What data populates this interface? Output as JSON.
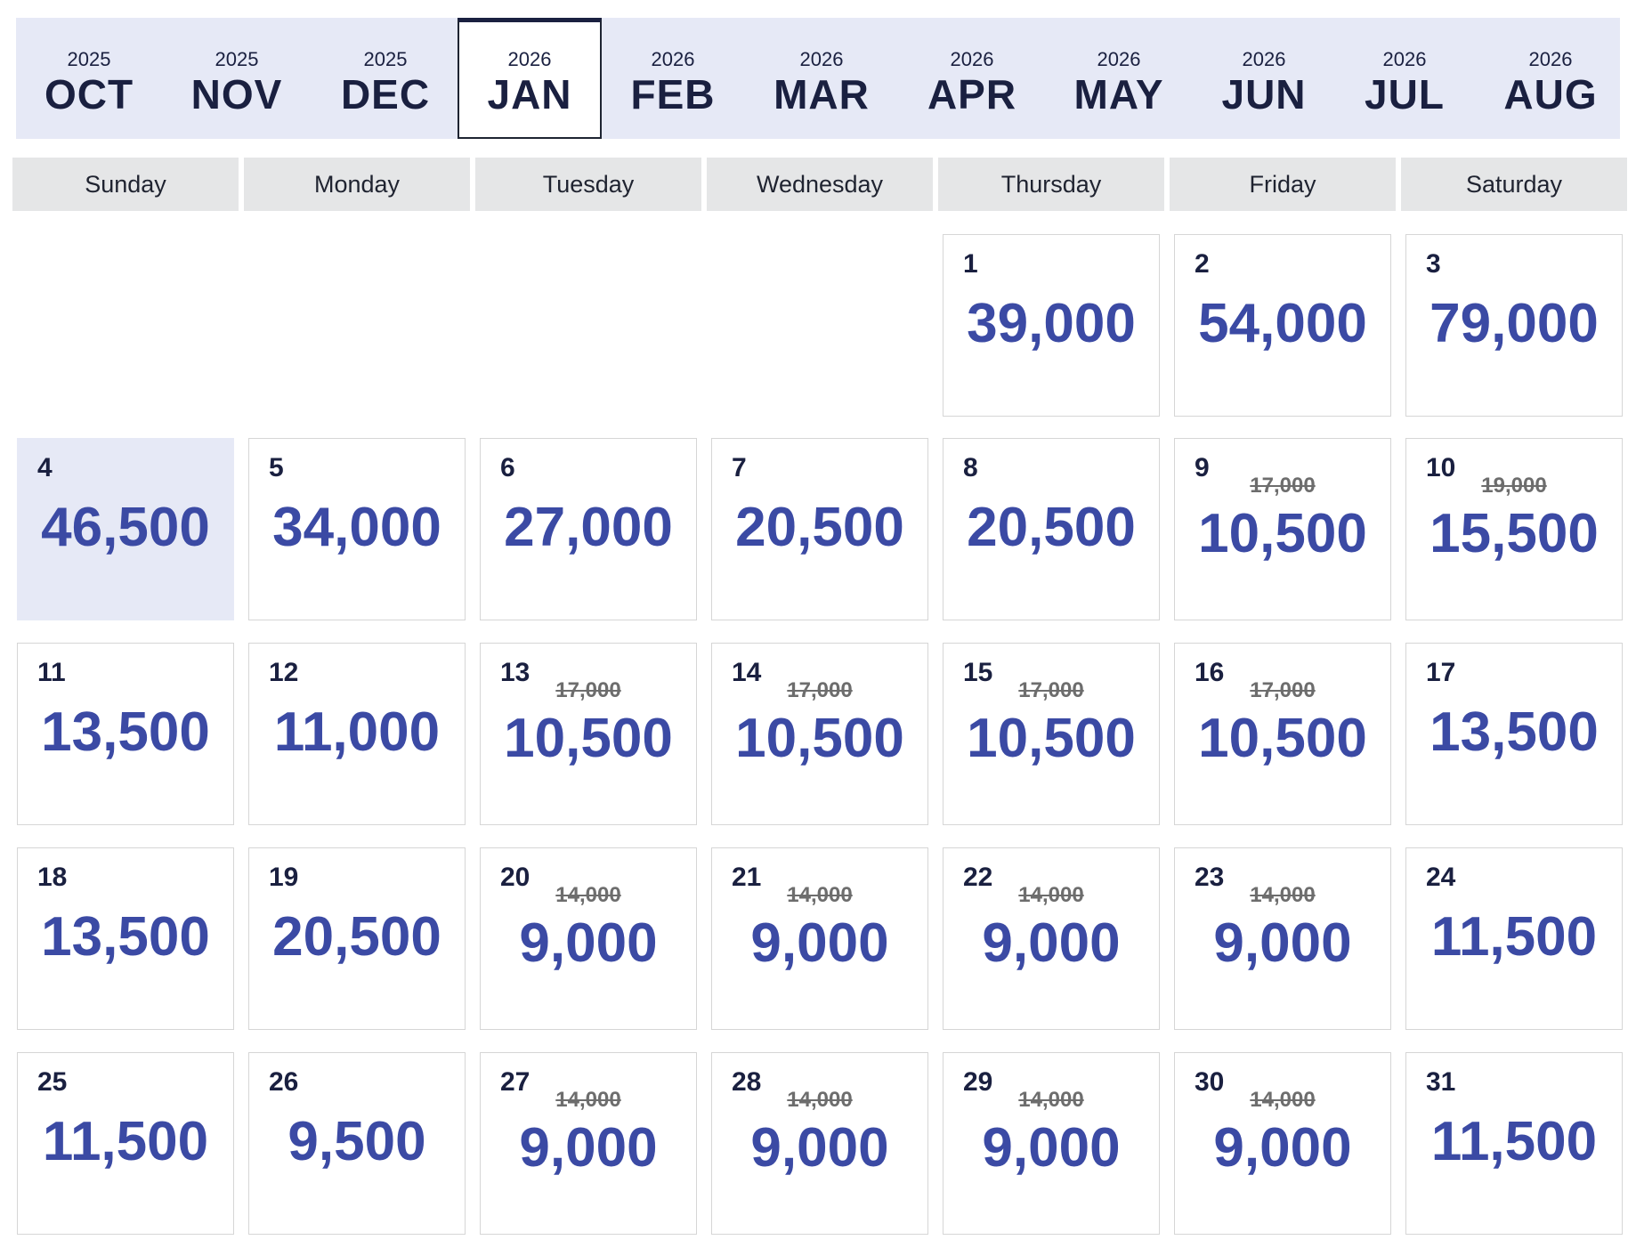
{
  "month_tabs": [
    {
      "year": "2025",
      "month": "OCT",
      "selected": false
    },
    {
      "year": "2025",
      "month": "NOV",
      "selected": false
    },
    {
      "year": "2025",
      "month": "DEC",
      "selected": false
    },
    {
      "year": "2026",
      "month": "JAN",
      "selected": true
    },
    {
      "year": "2026",
      "month": "FEB",
      "selected": false
    },
    {
      "year": "2026",
      "month": "MAR",
      "selected": false
    },
    {
      "year": "2026",
      "month": "APR",
      "selected": false
    },
    {
      "year": "2026",
      "month": "MAY",
      "selected": false
    },
    {
      "year": "2026",
      "month": "JUN",
      "selected": false
    },
    {
      "year": "2026",
      "month": "JUL",
      "selected": false
    },
    {
      "year": "2026",
      "month": "AUG",
      "selected": false
    }
  ],
  "weekdays": [
    "Sunday",
    "Monday",
    "Tuesday",
    "Wednesday",
    "Thursday",
    "Friday",
    "Saturday"
  ],
  "first_weekday_index": 4,
  "selected_day": "4",
  "colors": {
    "tab_bar_bg": "#e6e9f6",
    "selected_cell_bg": "#e6e9f6",
    "price": "#3b4aa4",
    "text_dark": "#1a2040",
    "strikethrough": "#6d6d6d"
  },
  "days": [
    {
      "day": "1",
      "price": "39,000",
      "old_price": null
    },
    {
      "day": "2",
      "price": "54,000",
      "old_price": null
    },
    {
      "day": "3",
      "price": "79,000",
      "old_price": null
    },
    {
      "day": "4",
      "price": "46,500",
      "old_price": null
    },
    {
      "day": "5",
      "price": "34,000",
      "old_price": null
    },
    {
      "day": "6",
      "price": "27,000",
      "old_price": null
    },
    {
      "day": "7",
      "price": "20,500",
      "old_price": null
    },
    {
      "day": "8",
      "price": "20,500",
      "old_price": null
    },
    {
      "day": "9",
      "price": "10,500",
      "old_price": "17,000"
    },
    {
      "day": "10",
      "price": "15,500",
      "old_price": "19,000"
    },
    {
      "day": "11",
      "price": "13,500",
      "old_price": null
    },
    {
      "day": "12",
      "price": "11,000",
      "old_price": null
    },
    {
      "day": "13",
      "price": "10,500",
      "old_price": "17,000"
    },
    {
      "day": "14",
      "price": "10,500",
      "old_price": "17,000"
    },
    {
      "day": "15",
      "price": "10,500",
      "old_price": "17,000"
    },
    {
      "day": "16",
      "price": "10,500",
      "old_price": "17,000"
    },
    {
      "day": "17",
      "price": "13,500",
      "old_price": null
    },
    {
      "day": "18",
      "price": "13,500",
      "old_price": null
    },
    {
      "day": "19",
      "price": "20,500",
      "old_price": null
    },
    {
      "day": "20",
      "price": "9,000",
      "old_price": "14,000"
    },
    {
      "day": "21",
      "price": "9,000",
      "old_price": "14,000"
    },
    {
      "day": "22",
      "price": "9,000",
      "old_price": "14,000"
    },
    {
      "day": "23",
      "price": "9,000",
      "old_price": "14,000"
    },
    {
      "day": "24",
      "price": "11,500",
      "old_price": null
    },
    {
      "day": "25",
      "price": "11,500",
      "old_price": null
    },
    {
      "day": "26",
      "price": "9,500",
      "old_price": null
    },
    {
      "day": "27",
      "price": "9,000",
      "old_price": "14,000"
    },
    {
      "day": "28",
      "price": "9,000",
      "old_price": "14,000"
    },
    {
      "day": "29",
      "price": "9,000",
      "old_price": "14,000"
    },
    {
      "day": "30",
      "price": "9,000",
      "old_price": "14,000"
    },
    {
      "day": "31",
      "price": "11,500",
      "old_price": null
    }
  ]
}
